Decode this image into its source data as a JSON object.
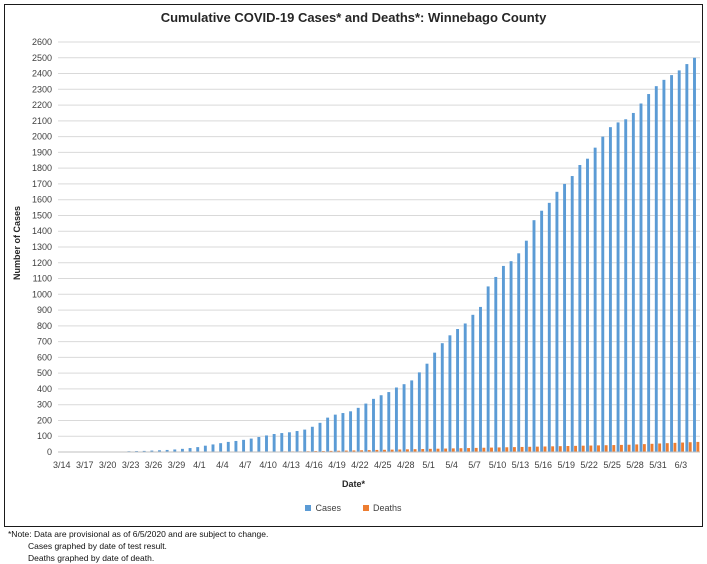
{
  "chart_data": {
    "type": "bar",
    "title": "Cumulative COVID-19 Cases* and Deaths*: Winnebago County",
    "xlabel": "Date*",
    "ylabel": "Number of Cases",
    "ylim": [
      0,
      2600
    ],
    "yticks": [
      0,
      100,
      200,
      300,
      400,
      500,
      600,
      700,
      800,
      900,
      1000,
      1100,
      1200,
      1300,
      1400,
      1500,
      1600,
      1700,
      1800,
      1900,
      2000,
      2100,
      2200,
      2300,
      2400,
      2500,
      2600
    ],
    "x_tick_labels": [
      "3/14",
      "3/17",
      "3/20",
      "3/23",
      "3/26",
      "3/29",
      "4/1",
      "4/4",
      "4/7",
      "4/10",
      "4/13",
      "4/16",
      "4/19",
      "4/22",
      "4/25",
      "4/28",
      "5/1",
      "5/4",
      "5/7",
      "5/10",
      "5/13",
      "5/16",
      "5/19",
      "5/22",
      "5/25",
      "5/28",
      "5/31",
      "6/3"
    ],
    "categories": [
      "3/14",
      "3/15",
      "3/16",
      "3/17",
      "3/18",
      "3/19",
      "3/20",
      "3/21",
      "3/22",
      "3/23",
      "3/24",
      "3/25",
      "3/26",
      "3/27",
      "3/28",
      "3/29",
      "3/30",
      "3/31",
      "4/1",
      "4/2",
      "4/3",
      "4/4",
      "4/5",
      "4/6",
      "4/7",
      "4/8",
      "4/9",
      "4/10",
      "4/11",
      "4/12",
      "4/13",
      "4/14",
      "4/15",
      "4/16",
      "4/17",
      "4/18",
      "4/19",
      "4/20",
      "4/21",
      "4/22",
      "4/23",
      "4/24",
      "4/25",
      "4/26",
      "4/27",
      "4/28",
      "4/29",
      "4/30",
      "5/1",
      "5/2",
      "5/3",
      "5/4",
      "5/5",
      "5/6",
      "5/7",
      "5/8",
      "5/9",
      "5/10",
      "5/11",
      "5/12",
      "5/13",
      "5/14",
      "5/15",
      "5/16",
      "5/17",
      "5/18",
      "5/19",
      "5/20",
      "5/21",
      "5/22",
      "5/23",
      "5/24",
      "5/25",
      "5/26",
      "5/27",
      "5/28",
      "5/29",
      "5/30",
      "5/31",
      "6/1",
      "6/2",
      "6/3",
      "6/4",
      "6/5"
    ],
    "series": [
      {
        "name": "Cases",
        "color": "#5b9bd5",
        "values": [
          1,
          1,
          1,
          1,
          1,
          2,
          2,
          3,
          3,
          5,
          6,
          7,
          9,
          11,
          13,
          16,
          20,
          25,
          31,
          40,
          48,
          56,
          64,
          70,
          77,
          85,
          95,
          105,
          114,
          120,
          125,
          133,
          142,
          160,
          185,
          218,
          237,
          247,
          258,
          280,
          307,
          337,
          360,
          380,
          409,
          430,
          454,
          505,
          560,
          630,
          690,
          740,
          780,
          815,
          870,
          920,
          1050,
          1110,
          1180,
          1210,
          1260,
          1340,
          1470,
          1530,
          1580,
          1650,
          1700,
          1750,
          1820,
          1860,
          1930,
          2000,
          2060,
          2090,
          2110,
          2150,
          2210,
          2270,
          2320,
          2360,
          2390,
          2420,
          2460,
          2500
        ]
      },
      {
        "name": "Deaths",
        "color": "#ed7d31",
        "values": [
          0,
          0,
          0,
          0,
          0,
          0,
          0,
          0,
          0,
          0,
          0,
          0,
          0,
          0,
          0,
          0,
          0,
          0,
          0,
          1,
          1,
          1,
          1,
          2,
          2,
          2,
          3,
          3,
          3,
          4,
          4,
          4,
          5,
          6,
          6,
          7,
          8,
          9,
          10,
          11,
          12,
          13,
          14,
          15,
          16,
          17,
          18,
          19,
          20,
          21,
          22,
          23,
          24,
          25,
          26,
          27,
          28,
          29,
          30,
          31,
          32,
          33,
          34,
          35,
          36,
          37,
          38,
          39,
          40,
          41,
          42,
          43,
          44,
          45,
          46,
          48,
          50,
          52,
          54,
          56,
          58,
          60,
          62,
          64
        ]
      }
    ],
    "grid": true,
    "legend_position": "bottom"
  },
  "note": {
    "line1": "*Note: Data are provisional as of 6/5/2020 and are subject to change.",
    "line2": "Cases graphed by date of test result.",
    "line3": "Deaths graphed by date of death."
  }
}
